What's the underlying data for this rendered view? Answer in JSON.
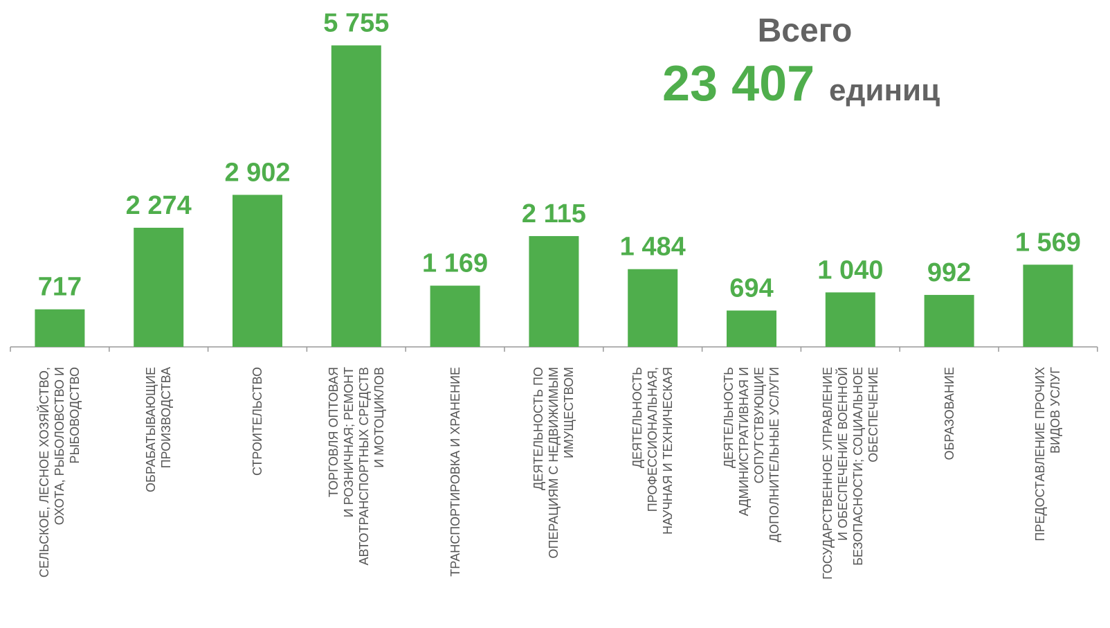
{
  "chart_data": {
    "type": "bar",
    "categories": [
      "СЕЛЬСКОЕ, ЛЕСНОЕ ХОЗЯЙСТВО,\nОХОТА, РЫБОЛОВСТВО И\nРЫБОВОДСТВО",
      "ОБРАБАТЫВАЮЩИЕ\nПРОИЗВОДСТВА",
      "СТРОИТЕЛЬСТВО",
      "ТОРГОВЛЯ ОПТОВАЯ\nИ РОЗНИЧНАЯ; РЕМОНТ\nАВТОТРАНСПОРТНЫХ СРЕДСТВ\nИ МОТОЦИКЛОВ",
      "ТРАНСПОРТИРОВКА И ХРАНЕНИЕ",
      "ДЕЯТЕЛЬНОСТЬ ПО\nОПЕРАЦИЯМ С НЕДВИЖИМЫМ\nИМУЩЕСТВОМ",
      "ДЕЯТЕЛЬНОСТЬ\nПРОФЕССИОНАЛЬНАЯ,\nНАУЧНАЯ И ТЕХНИЧЕСКАЯ",
      "ДЕЯТЕЛЬНОСТЬ\nАДМИНИСТРАТИВНАЯ И\nСОПУТСТВУЮЩИЕ\nДОПОЛНИТЕЛЬНЫЕ УСЛУГИ",
      "ГОСУДАРСТВЕННОЕ УПРАВЛЕНИЕ\nИ ОБЕСПЕЧЕНИЕ ВОЕННОЙ\nБЕЗОПАСНОСТИ; СОЦИАЛЬНОЕ\nОБЕСПЕЧЕНИЕ",
      "ОБРАЗОВАНИЕ",
      "ПРЕДОСТАВЛЕНИЕ ПРОЧИХ\nВИДОВ УСЛУГ"
    ],
    "values": [
      717,
      2274,
      2902,
      5755,
      1169,
      2115,
      1484,
      694,
      1040,
      992,
      1569
    ],
    "value_labels": [
      "717",
      "2 274",
      "2 902",
      "5 755",
      "1 169",
      "2 115",
      "1 484",
      "694",
      "1 040",
      "992",
      "1 569"
    ],
    "color": "#4fae4c",
    "ylim": [
      0,
      6000
    ],
    "total": {
      "label": "Всего",
      "value": "23 407",
      "unit": "единиц"
    }
  }
}
